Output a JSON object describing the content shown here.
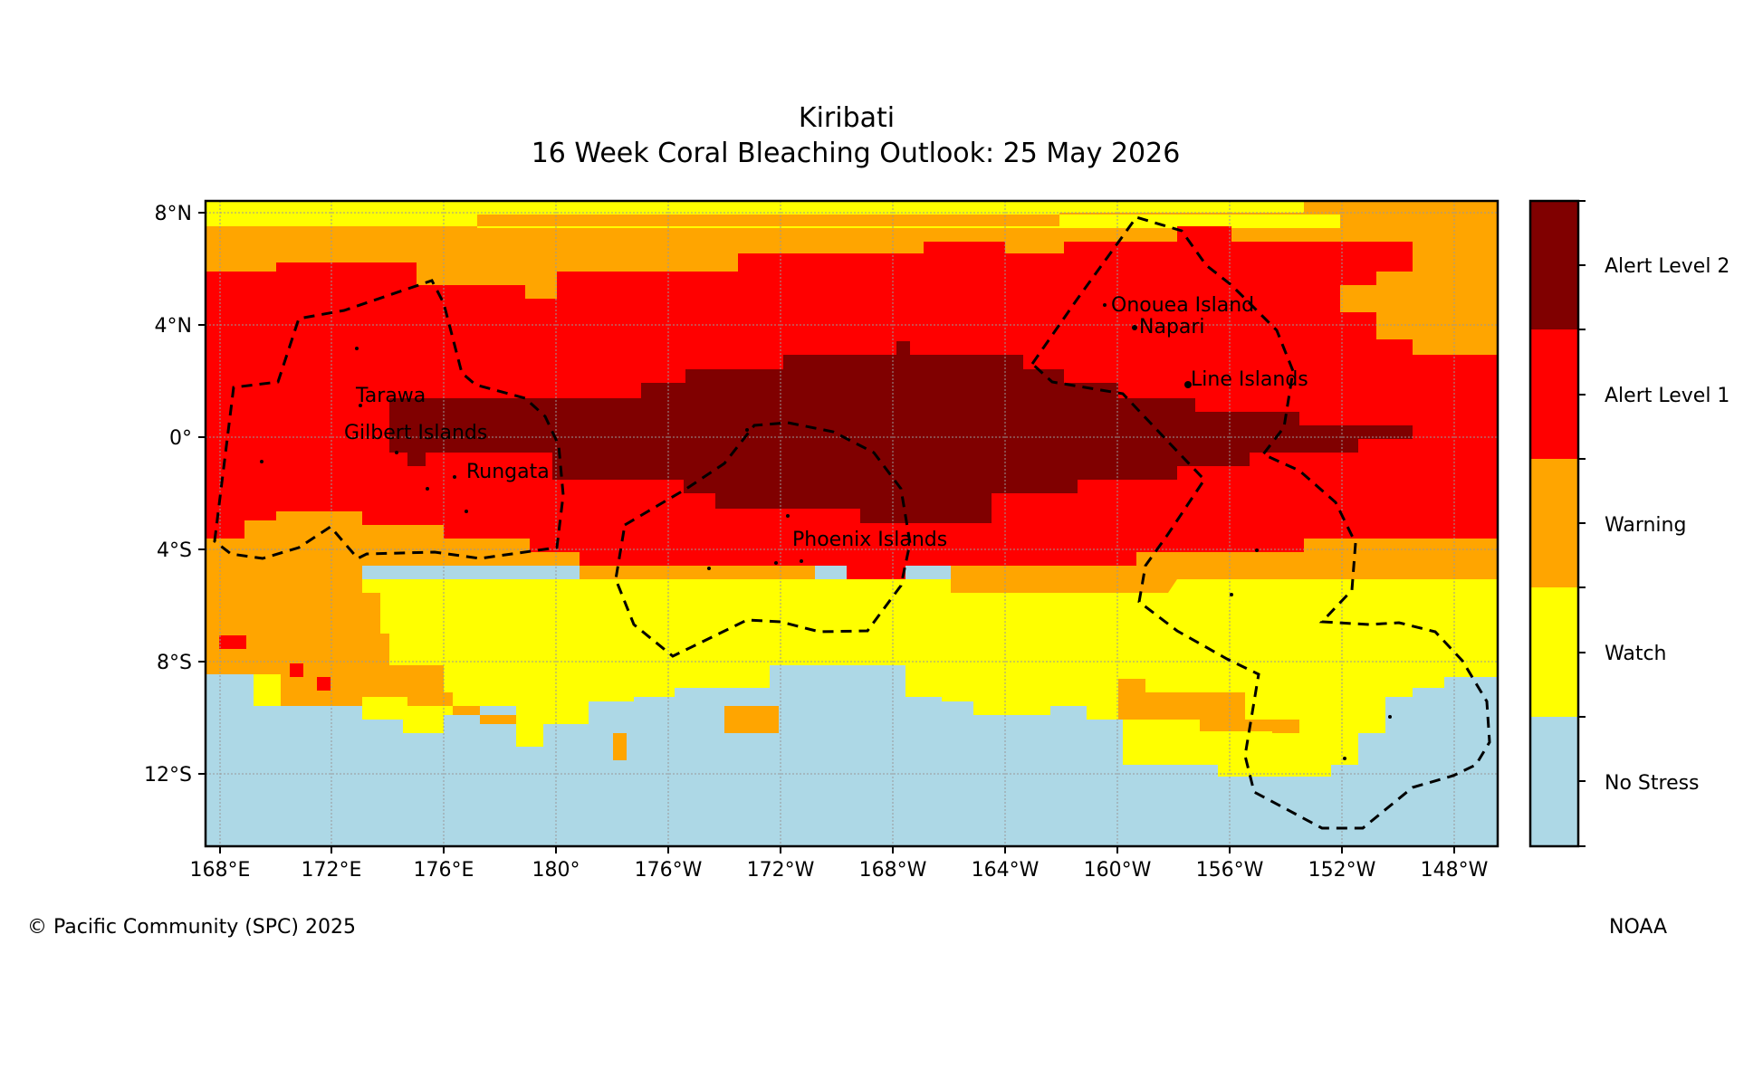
{
  "title": "Kiribati",
  "subtitle": "16 Week Coral Bleaching Outlook: 25 May 2026",
  "credit_left": "© Pacific Community (SPC) 2025",
  "credit_right": "NOAA",
  "lon_ticks": [
    "168°E",
    "172°E",
    "176°E",
    "180°",
    "176°W",
    "172°W",
    "168°W",
    "164°W",
    "160°W",
    "156°W",
    "152°W",
    "148°W"
  ],
  "lat_ticks": [
    "8°N",
    "4°N",
    "0°",
    "4°S",
    "8°S",
    "12°S"
  ],
  "colorbar": {
    "levels": [
      {
        "label": "No Stress",
        "color": "#add8e6"
      },
      {
        "label": "Watch",
        "color": "#ffff00"
      },
      {
        "label": "Warning",
        "color": "#ffa500"
      },
      {
        "label": "Alert Level 1",
        "color": "#ff0000"
      },
      {
        "label": "Alert Level 2",
        "color": "#800000"
      }
    ]
  },
  "labels": {
    "tarawa": "Tarawa",
    "gilbert": "Gilbert Islands",
    "rungata": "Rungata",
    "phoenix": "Phoenix Islands",
    "line": "Line Islands",
    "onouea": "Onouea Island",
    "napari": "Napari"
  },
  "colors": {
    "no_stress": "#add8e6",
    "watch": "#ffff00",
    "warning": "#ffa500",
    "alert1": "#ff0000",
    "alert2": "#800000"
  }
}
